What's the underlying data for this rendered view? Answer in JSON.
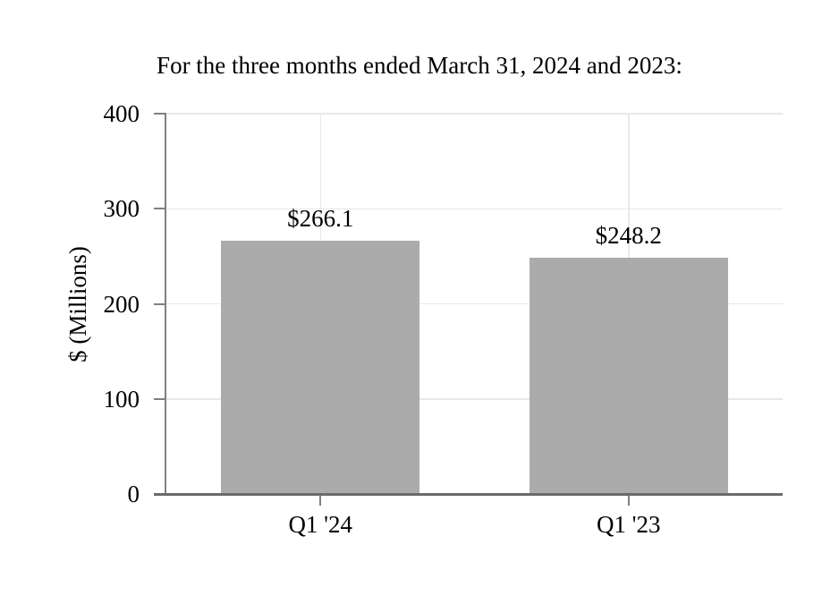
{
  "chart_data": {
    "type": "bar",
    "title": "For the three months ended March 31, 2024 and 2023:",
    "ylabel": "$ (Millions)",
    "xlabel": "",
    "categories": [
      "Q1 '24",
      "Q1 '23"
    ],
    "values": [
      266.1,
      248.2
    ],
    "value_labels": [
      "$266.1",
      "$248.2"
    ],
    "ylim": [
      0,
      400
    ],
    "yticks": [
      0,
      100,
      200,
      300,
      400
    ],
    "grid": "horizontal gridlines at y ticks plus vertical gridline at each category center",
    "legend": "none",
    "colors": {
      "bar": "#ABABAB",
      "x_axis": "#6A6A6A",
      "y_axis": "#808080",
      "tick": "#808080",
      "gridline": "#E8E8E8",
      "text": "#000000"
    }
  }
}
